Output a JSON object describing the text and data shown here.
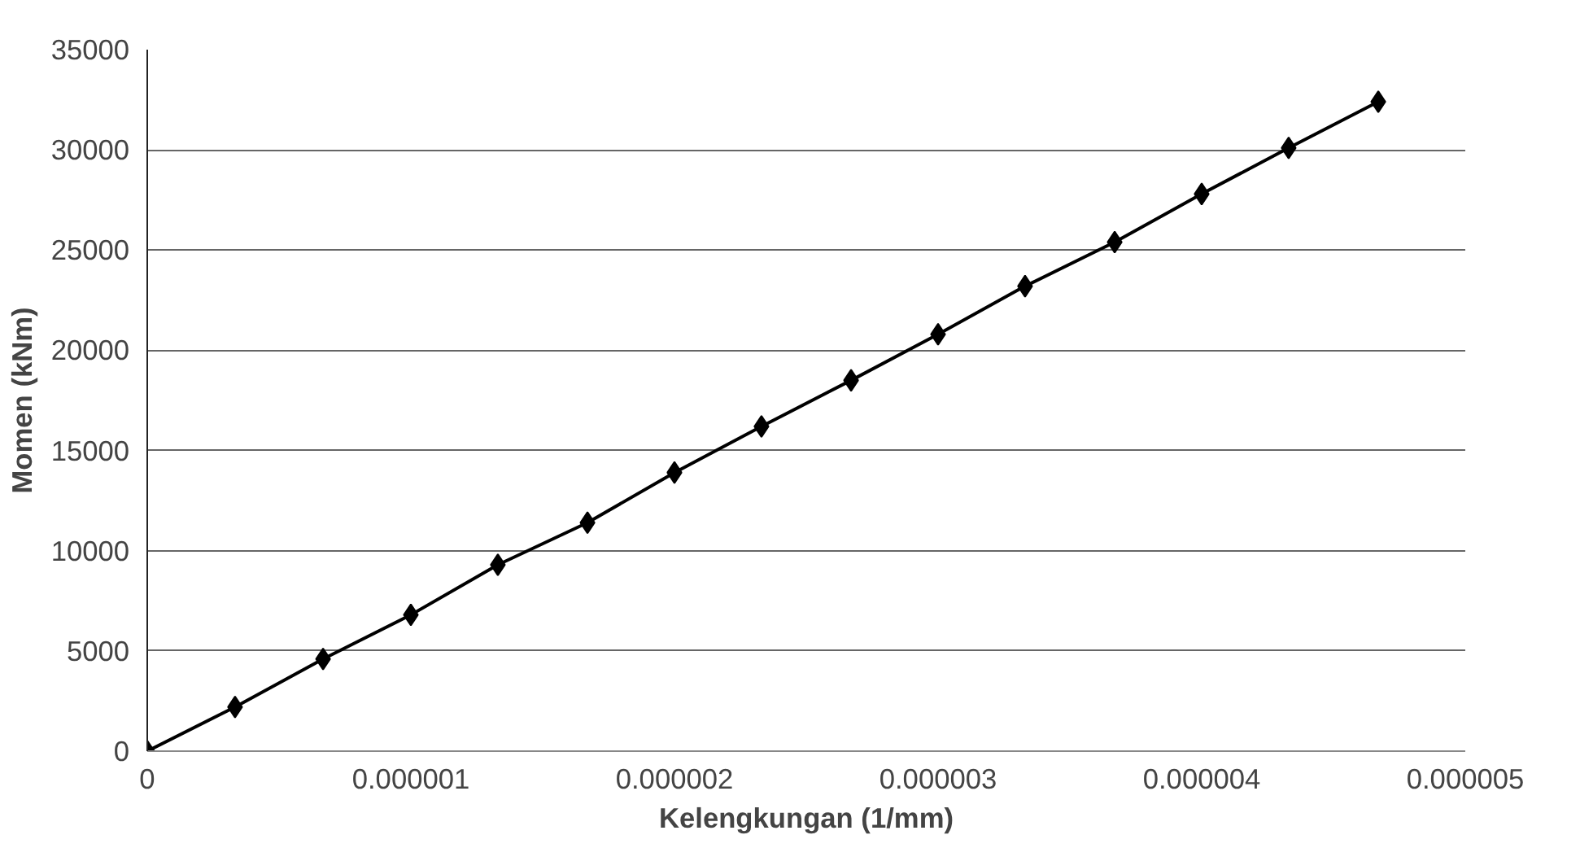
{
  "chart_data": {
    "type": "line",
    "xlabel": "Kelengkungan (1/mm)",
    "ylabel": "Momen (kNm)",
    "x": [
      0,
      3.33e-07,
      6.67e-07,
      1e-06,
      1.33e-06,
      1.67e-06,
      2e-06,
      2.33e-06,
      2.67e-06,
      3e-06,
      3.33e-06,
      3.67e-06,
      4e-06,
      4.33e-06,
      4.67e-06
    ],
    "series": [
      {
        "color": "#000000",
        "values": [
          0,
          2200,
          4600,
          6800,
          9300,
          11400,
          13900,
          16200,
          18500,
          20800,
          23200,
          25400,
          27800,
          30100,
          32400
        ]
      }
    ],
    "xlim": [
      0,
      5e-06
    ],
    "ylim": [
      0,
      35000
    ],
    "xticks": [
      {
        "value": 0,
        "label": "0"
      },
      {
        "value": 1e-06,
        "label": "0.000001"
      },
      {
        "value": 2e-06,
        "label": "0.000002"
      },
      {
        "value": 3e-06,
        "label": "0.000003"
      },
      {
        "value": 4e-06,
        "label": "0.000004"
      },
      {
        "value": 5e-06,
        "label": "0.000005"
      }
    ],
    "yticks": [
      0,
      5000,
      10000,
      15000,
      20000,
      25000,
      30000,
      35000
    ],
    "grid": "y",
    "marker": "diamond",
    "line_style": "solid"
  }
}
